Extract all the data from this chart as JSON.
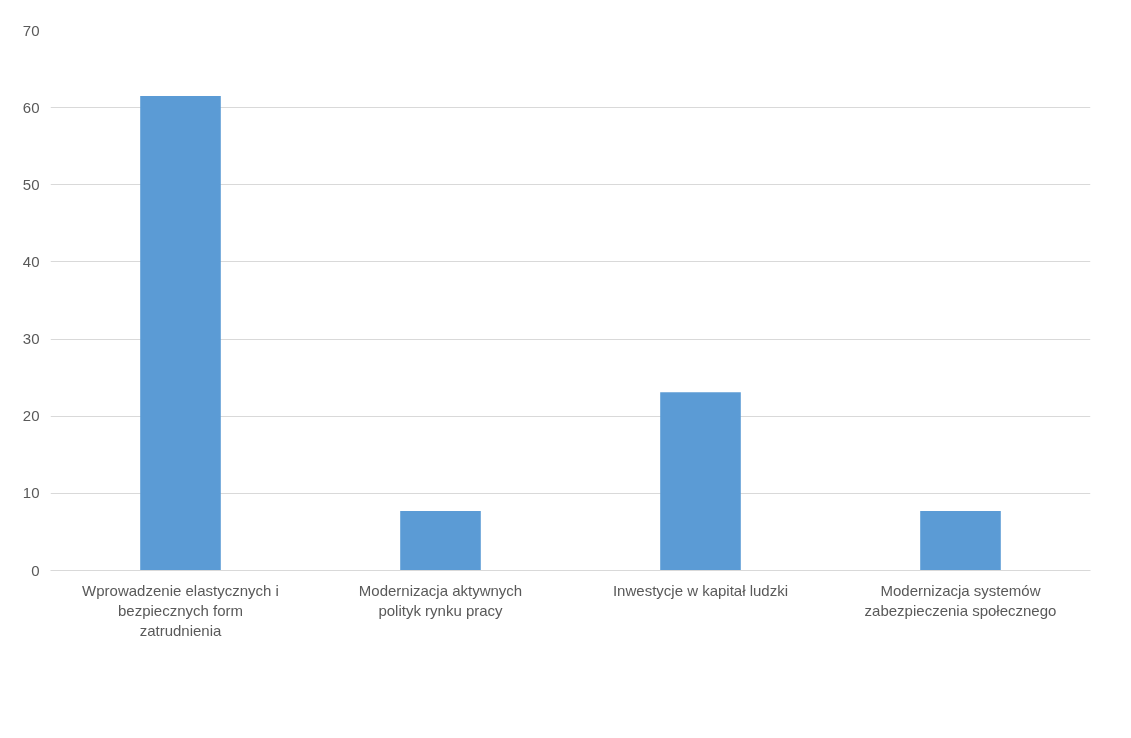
{
  "chart_data": {
    "type": "bar",
    "categories": [
      "Wprowadzenie elastycznych i bezpiecznych form zatrudnienia",
      "Modernizacja aktywnych polityk rynku pracy",
      "Inwestycje w kapitał ludzki",
      "Modernizacja systemów zabezpieczenia społecznego"
    ],
    "values": [
      61.5,
      7.7,
      23.1,
      7.7
    ],
    "color": "#5b9bd5",
    "ylim": [
      0,
      70
    ],
    "yticks": [
      0,
      10,
      20,
      30,
      40,
      50,
      60,
      70
    ],
    "grid": "y"
  }
}
